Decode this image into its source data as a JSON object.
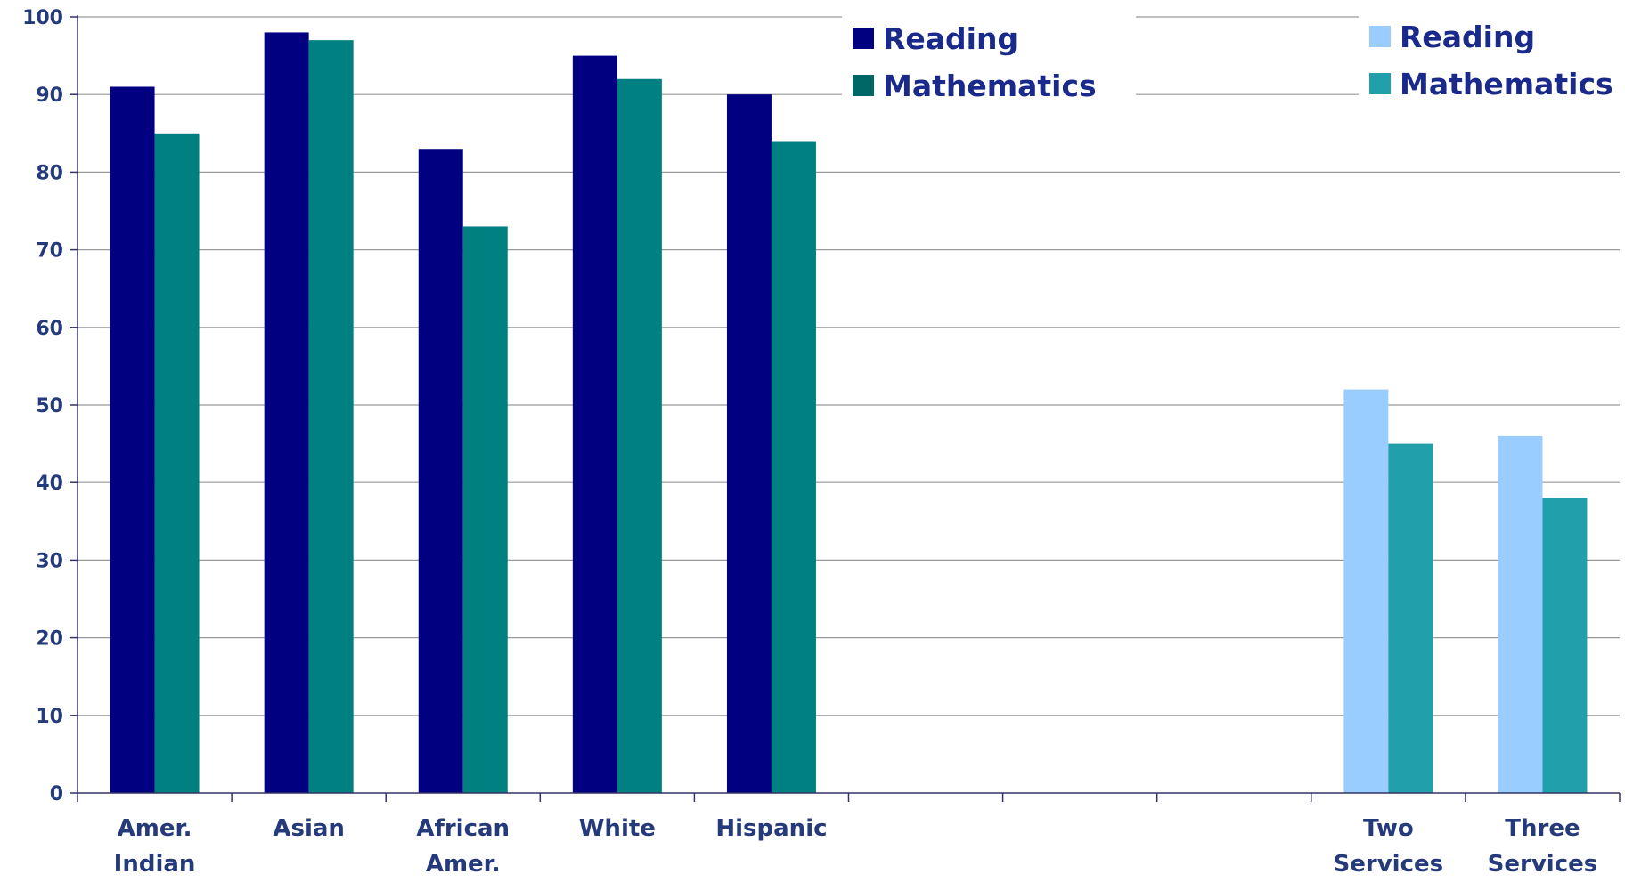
{
  "chart_data": {
    "type": "bar",
    "categories": [
      [
        "Amer.",
        "Indian"
      ],
      [
        "Asian"
      ],
      [
        "African",
        "Amer."
      ],
      [
        "White"
      ],
      [
        "Hispanic"
      ],
      [
        ""
      ],
      [
        ""
      ],
      [
        ""
      ],
      [
        "Two",
        "Services"
      ],
      [
        "Three",
        "Services"
      ]
    ],
    "series": [
      {
        "name": "Reading",
        "group": 1,
        "values": [
          91,
          98,
          83,
          95,
          90,
          null,
          null,
          null,
          null,
          null
        ]
      },
      {
        "name": "Mathematics",
        "group": 1,
        "values": [
          85,
          97,
          73,
          92,
          84,
          null,
          null,
          null,
          null,
          null
        ]
      },
      {
        "name": "Reading",
        "group": 2,
        "values": [
          null,
          null,
          null,
          null,
          null,
          null,
          null,
          null,
          52,
          46
        ]
      },
      {
        "name": "Mathematics",
        "group": 2,
        "values": [
          null,
          null,
          null,
          null,
          null,
          null,
          null,
          null,
          45,
          38
        ]
      }
    ],
    "ylim": [
      0,
      100
    ],
    "yticks": [
      0,
      10,
      20,
      30,
      40,
      50,
      60,
      70,
      80,
      90,
      100
    ],
    "grid": true,
    "legends": [
      {
        "placement": "top-center",
        "entries": [
          {
            "label": "Reading",
            "color": "#000080"
          },
          {
            "label": "Mathematics",
            "color": "#006666"
          }
        ]
      },
      {
        "placement": "top-right",
        "entries": [
          {
            "label": "Reading",
            "color": "#99CCFF"
          },
          {
            "label": "Mathematics",
            "color": "#21A0AC"
          }
        ]
      }
    ],
    "colors": {
      "reading_1": "#000080",
      "math_1": "#008080",
      "reading_2": "#99CCFF",
      "math_2": "#21A0AC",
      "grid": "#999999",
      "axis": "#333366",
      "text": "#243a7a"
    }
  }
}
